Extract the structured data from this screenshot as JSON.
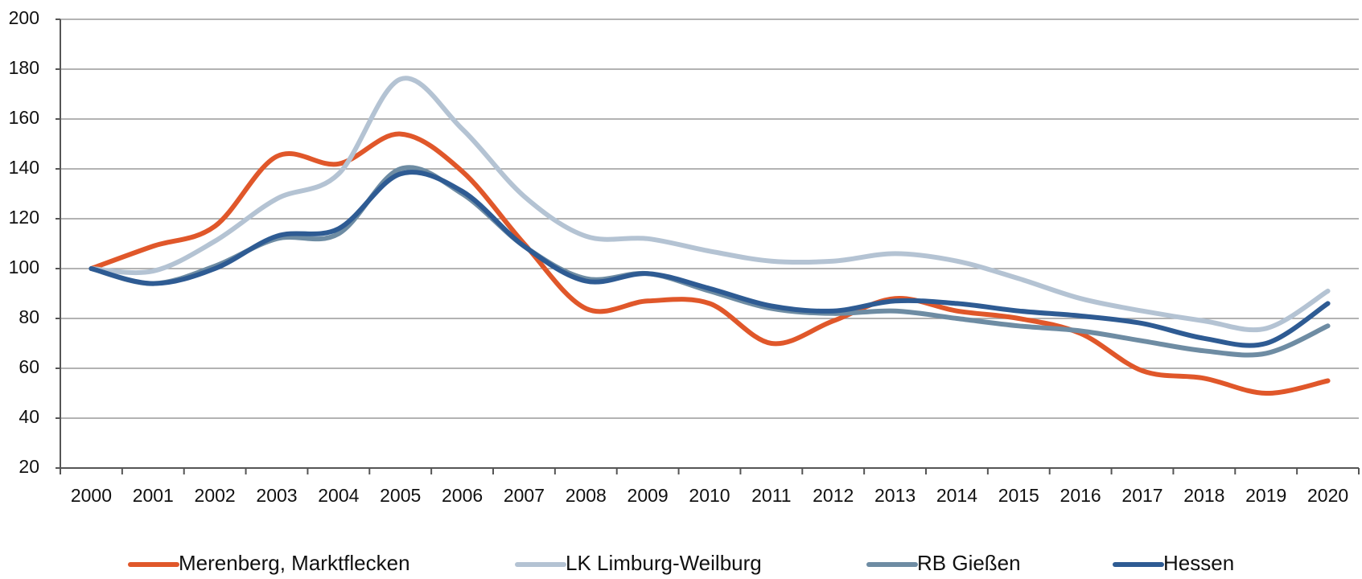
{
  "chart_data": {
    "type": "line",
    "smooth": true,
    "categories": [
      "2000",
      "2001",
      "2002",
      "2003",
      "2004",
      "2005",
      "2006",
      "2007",
      "2008",
      "2009",
      "2010",
      "2011",
      "2012",
      "2013",
      "2014",
      "2015",
      "2016",
      "2017",
      "2018",
      "2019",
      "2020"
    ],
    "series": [
      {
        "name": "Merenberg, Marktflecken",
        "color": "#e0572a",
        "values": [
          100,
          109,
          117,
          145,
          142,
          154,
          139,
          110,
          84,
          87,
          86,
          70,
          79,
          88,
          83,
          80,
          74,
          59,
          56,
          50,
          55
        ]
      },
      {
        "name": "LK Limburg-Weilburg",
        "color": "#b4c3d3",
        "values": [
          100,
          99,
          111,
          128,
          138,
          176,
          156,
          129,
          113,
          112,
          107,
          103,
          103,
          106,
          103,
          96,
          88,
          83,
          79,
          76,
          91
        ]
      },
      {
        "name": "RB Gießen",
        "color": "#6e8ca3",
        "values": [
          100,
          94,
          101,
          112,
          114,
          140,
          130,
          109,
          96,
          98,
          91,
          84,
          82,
          83,
          80,
          77,
          75,
          71,
          67,
          66,
          77
        ]
      },
      {
        "name": "Hessen",
        "color": "#2e5b93",
        "values": [
          100,
          94,
          100,
          113,
          116,
          138,
          131,
          109,
          95,
          98,
          92,
          85,
          83,
          87,
          86,
          83,
          81,
          78,
          72,
          70,
          86
        ]
      }
    ],
    "ylim": [
      20,
      200
    ],
    "yticks": [
      20,
      40,
      60,
      80,
      100,
      120,
      140,
      160,
      180,
      200
    ],
    "grid": true,
    "legend": "bottom"
  }
}
